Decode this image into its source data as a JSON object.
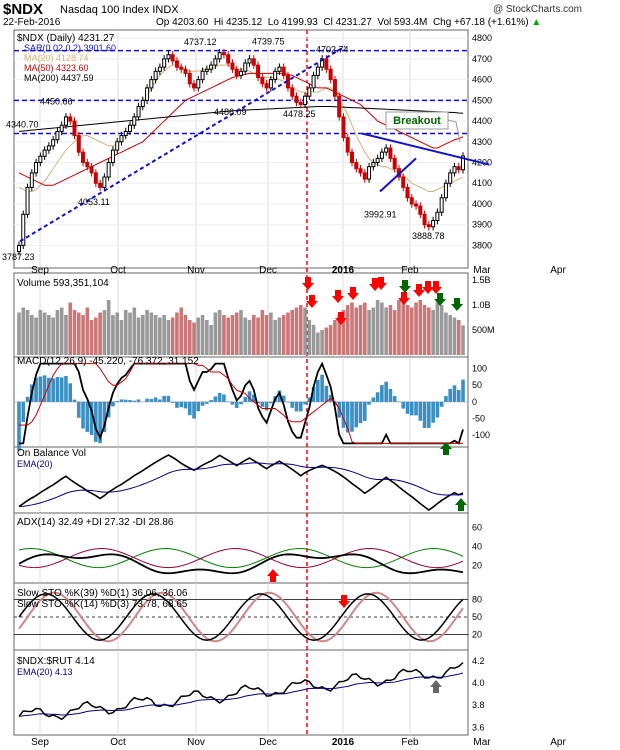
{
  "header": {
    "symbol": "$NDX",
    "name": "Nasdaq 100 Index INDX",
    "brand": "@ StockCharts.com",
    "date": "22-Feb-2016",
    "quote_open": "Op 4203.60",
    "quote_high": "Hi 4235.12",
    "quote_low": "Lo 4199.93",
    "quote_close": "Cl 4231.27",
    "quote_vol": "Vol 593.4M",
    "quote_chg": "Chg +67.18 (+1.61%)",
    "chg_arrow": "▲"
  },
  "colors": {
    "up": "#000000",
    "down": "#cc0000",
    "trend": "#1111cc",
    "ma20": "#cfb47a",
    "ma50": "#cc0000",
    "ma200": "#000000",
    "ema": "#000080",
    "arrow_red": "#ff0000",
    "arrow_green": "#006600",
    "arrow_gray": "#666666",
    "macd_hist": "#3a8fc4",
    "pdi": "#008000",
    "mdi": "#990033"
  },
  "chart_data": [
    {
      "type": "candlestick",
      "title": "$NDX (Daily) 4231.27",
      "legend": [
        "SAR(0.02,0.2) 3901.60",
        "MA(20) 4128.74",
        "MA(50) 4323.60",
        "MA(200) 4437.59"
      ],
      "x_ticks": [
        "Sep",
        "Oct",
        "Nov",
        "Dec",
        "2016",
        "Feb",
        "Mar",
        "Apr"
      ],
      "ylim": [
        3720,
        4820
      ],
      "y_ticks": [
        3800,
        3900,
        4000,
        4100,
        4200,
        4300,
        4400,
        4500,
        4600,
        4700,
        4800
      ],
      "horizontal_levels": [
        4740,
        4500,
        4340
      ],
      "annotations": [
        {
          "text": "3787.23",
          "value": 3787.23
        },
        {
          "text": "4340.70",
          "value": 4340.7
        },
        {
          "text": "4450.66",
          "value": 4450.66
        },
        {
          "text": "4053.11",
          "value": 4053.11
        },
        {
          "text": "4737.12",
          "value": 4737.12
        },
        {
          "text": "4486.09",
          "value": 4486.09
        },
        {
          "text": "4739.75",
          "value": 4739.75
        },
        {
          "text": "4478.25",
          "value": 4478.25
        },
        {
          "text": "4702.74",
          "value": 4702.74
        },
        {
          "text": "3992.91",
          "value": 3992.91
        },
        {
          "text": "3888.78",
          "value": 3888.78
        },
        {
          "text": "Breakout",
          "value": null
        }
      ],
      "close_series": [
        3800,
        3950,
        4080,
        4150,
        4200,
        4230,
        4260,
        4280,
        4310,
        4350,
        4380,
        4420,
        4400,
        4330,
        4250,
        4200,
        4180,
        4150,
        4100,
        4080,
        4130,
        4200,
        4260,
        4300,
        4330,
        4350,
        4380,
        4420,
        4470,
        4500,
        4560,
        4600,
        4640,
        4660,
        4700,
        4720,
        4690,
        4660,
        4650,
        4630,
        4580,
        4560,
        4600,
        4640,
        4650,
        4670,
        4700,
        4730,
        4720,
        4680,
        4650,
        4620,
        4640,
        4680,
        4700,
        4670,
        4610,
        4580,
        4560,
        4600,
        4640,
        4660,
        4620,
        4560,
        4520,
        4490,
        4480,
        4520,
        4560,
        4620,
        4660,
        4700,
        4650,
        4600,
        4520,
        4420,
        4320,
        4250,
        4200,
        4170,
        4150,
        4120,
        4180,
        4200,
        4220,
        4250,
        4270,
        4220,
        4170,
        4130,
        4080,
        4030,
        4000,
        3990,
        3950,
        3900,
        3890,
        3920,
        3960,
        4030,
        4100,
        4150,
        4180,
        4165,
        4231.27
      ],
      "ma20": [
        4080,
        4070,
        4060,
        4060,
        4070,
        4090,
        4110,
        4140,
        4170,
        4200,
        4230,
        4260,
        4280,
        4300,
        4320,
        4330,
        4330,
        4320,
        4310,
        4300,
        4290,
        4280,
        4280,
        4290,
        4310,
        4330,
        4360,
        4400,
        4440,
        4480,
        4520,
        4560,
        4590,
        4620,
        4640,
        4660,
        4670,
        4670,
        4660,
        4650,
        4640,
        4640,
        4640,
        4650,
        4650,
        4650,
        4660,
        4670,
        4670,
        4670,
        4660,
        4650,
        4650,
        4650,
        4640,
        4630,
        4620,
        4610,
        4610,
        4610,
        4610,
        4600,
        4590,
        4570,
        4560,
        4550,
        4540,
        4540,
        4540,
        4540,
        4540,
        4550,
        4560,
        4560,
        4540,
        4510,
        4470,
        4430,
        4380,
        4330,
        4290,
        4250,
        4220,
        4200,
        4190,
        4180,
        4180,
        4170,
        4160,
        4150,
        4140,
        4120,
        4100,
        4090,
        4080,
        4070,
        4060,
        4060,
        4070,
        4080,
        4090,
        4100,
        4110,
        4120,
        4128.74
      ],
      "ma50": [
        4150,
        4140,
        4130,
        4120,
        4110,
        4100,
        4090,
        4090,
        4090,
        4100,
        4110,
        4120,
        4130,
        4140,
        4150,
        4160,
        4170,
        4180,
        4190,
        4200,
        4210,
        4220,
        4230,
        4240,
        4250,
        4260,
        4270,
        4280,
        4290,
        4300,
        4320,
        4340,
        4360,
        4380,
        4400,
        4420,
        4440,
        4460,
        4480,
        4500,
        4510,
        4520,
        4530,
        4540,
        4550,
        4560,
        4570,
        4580,
        4590,
        4600,
        4610,
        4615,
        4620,
        4625,
        4630,
        4630,
        4630,
        4630,
        4630,
        4630,
        4630,
        4630,
        4630,
        4625,
        4620,
        4610,
        4600,
        4590,
        4580,
        4570,
        4560,
        4560,
        4560,
        4550,
        4540,
        4530,
        4520,
        4510,
        4500,
        4490,
        4480,
        4460,
        4440,
        4420,
        4400,
        4390,
        4380,
        4370,
        4360,
        4350,
        4340,
        4330,
        4320,
        4310,
        4300,
        4290,
        4280,
        4270,
        4270,
        4280,
        4290,
        4300,
        4310,
        4315,
        4323.6
      ],
      "ma200": [
        4350,
        4352,
        4354,
        4356,
        4358,
        4360,
        4362,
        4364,
        4366,
        4368,
        4370,
        4372,
        4374,
        4376,
        4378,
        4380,
        4382,
        4384,
        4386,
        4388,
        4390,
        4392,
        4394,
        4396,
        4398,
        4400,
        4402,
        4404,
        4406,
        4408,
        4410,
        4412,
        4414,
        4416,
        4418,
        4420,
        4422,
        4424,
        4426,
        4428,
        4430,
        4432,
        4434,
        4436,
        4438,
        4440,
        4442,
        4444,
        4446,
        4448,
        4450,
        4451,
        4452,
        4453,
        4454,
        4455,
        4456,
        4457,
        4458,
        4459,
        4460,
        4461,
        4462,
        4463,
        4464,
        4465,
        4466,
        4467,
        4468,
        4469,
        4470,
        4470,
        4470,
        4470,
        4469,
        4468,
        4467,
        4466,
        4465,
        4464,
        4463,
        4462,
        4461,
        4460,
        4459,
        4458,
        4457,
        4456,
        4455,
        4454,
        4453,
        4452,
        4451,
        4450,
        4449,
        4448,
        4447,
        4446,
        4445,
        4444,
        4443,
        4442,
        4441,
        4439,
        4437.59
      ]
    },
    {
      "type": "bar",
      "title": "Volume 593,351,104",
      "ylim": [
        0,
        1.6
      ],
      "y_ticks": [
        "500M",
        "1.0B",
        "1.5B"
      ],
      "values": [
        0.85,
        0.95,
        0.9,
        0.8,
        0.75,
        0.9,
        0.85,
        0.8,
        0.75,
        0.9,
        0.95,
        0.8,
        1.05,
        0.9,
        0.85,
        0.8,
        0.95,
        0.7,
        0.75,
        0.85,
        0.9,
        1.1,
        0.8,
        0.85,
        0.7,
        0.9,
        0.85,
        0.95,
        0.75,
        0.8,
        0.9,
        0.85,
        0.8,
        0.75,
        0.8,
        0.7,
        0.75,
        0.85,
        0.95,
        0.8,
        0.7,
        0.65,
        0.75,
        0.8,
        0.7,
        0.6,
        0.85,
        0.9,
        0.8,
        0.75,
        0.8,
        0.85,
        0.9,
        0.75,
        0.7,
        0.8,
        0.75,
        0.9,
        0.8,
        0.85,
        0.7,
        0.75,
        0.8,
        0.85,
        0.9,
        0.95,
        1.0,
        0.95,
        0.7,
        0.6,
        0.45,
        0.5,
        0.55,
        0.6,
        0.7,
        0.8,
        0.9,
        1.0,
        1.05,
        0.95,
        1.0,
        1.05,
        0.9,
        0.95,
        1.1,
        1.05,
        0.95,
        1.0,
        0.9,
        1.1,
        1.05,
        1.0,
        0.95,
        1.05,
        1.1,
        1.0,
        0.95,
        0.9,
        1.05,
        1.0,
        0.85,
        0.8,
        0.75,
        0.7,
        0.593
      ],
      "arrows_down": [
        "red",
        "red",
        "red",
        "red",
        "red",
        "red",
        "red",
        "red",
        "red",
        "red",
        "red",
        "green",
        "green",
        "green"
      ]
    },
    {
      "type": "line",
      "title": "MACD(12,26,9) -45.220, -76.372, 31.152",
      "ylim": [
        -130,
        120
      ],
      "y_ticks": [
        100,
        50,
        0,
        -50,
        -100
      ]
    },
    {
      "type": "line",
      "title": "On Balance Vol",
      "legend": [
        "EMA(20)"
      ]
    },
    {
      "type": "line",
      "title": "ADX(14) 32.49 +DI 27.32 -DI 28.86",
      "ylim": [
        5,
        70
      ],
      "y_ticks": [
        20,
        40,
        60
      ]
    },
    {
      "type": "line",
      "title": "Slow STO %K(39) %D(1) 36.06, 36.06",
      "subtitle": "Slow STO %K(14) %D(3) 73.78, 68.65",
      "ylim": [
        0,
        100
      ],
      "y_ticks": [
        20,
        50,
        80
      ]
    },
    {
      "type": "line",
      "title": "$NDX:$RUT 4.14",
      "legend": [
        "EMA(20) 4.13"
      ],
      "ylim": [
        3.55,
        4.27
      ],
      "y_ticks": [
        3.6,
        3.8,
        4.0,
        4.2
      ]
    }
  ]
}
